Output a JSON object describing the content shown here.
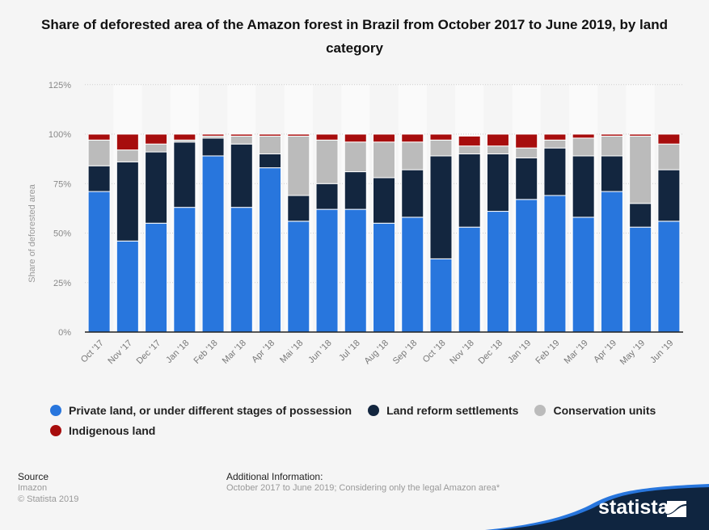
{
  "chart_data": {
    "type": "bar",
    "stacked": true,
    "title": "Share of deforested area of the Amazon forest in Brazil from October 2017 to June 2019, by land category",
    "xlabel": "",
    "ylabel": "Share of deforested area",
    "ylim": [
      0,
      125
    ],
    "yticks": [
      "0%",
      "25%",
      "50%",
      "75%",
      "100%",
      "125%"
    ],
    "ytick_values": [
      0,
      25,
      50,
      75,
      100,
      125
    ],
    "grid": true,
    "legend_position": "bottom",
    "categories": [
      "Oct '17",
      "Nov '17",
      "Dec '17",
      "Jan '18",
      "Feb '18",
      "Mar '18",
      "Apr '18",
      "Mai '18",
      "Jun '18",
      "Jul '18",
      "Aug '18",
      "Sep '18",
      "Oct '18",
      "Nov '18",
      "Dec '18",
      "Jan '19",
      "Feb '19",
      "Mar '19",
      "Apr '19",
      "May '19",
      "Jun '19"
    ],
    "series": [
      {
        "name": "Private land, or under different stages of possession",
        "color": "#2876dd",
        "values": [
          71,
          46,
          55,
          63,
          89,
          63,
          83,
          56,
          62,
          62,
          55,
          58,
          37,
          53,
          61,
          67,
          69,
          58,
          71,
          53,
          56
        ]
      },
      {
        "name": "Land reform settlements",
        "color": "#13263f",
        "values": [
          13,
          40,
          36,
          33,
          9,
          32,
          7,
          13,
          13,
          19,
          23,
          24,
          52,
          37,
          29,
          21,
          24,
          31,
          18,
          12,
          26
        ]
      },
      {
        "name": "Conservation units",
        "color": "#bbbbbb",
        "values": [
          13,
          6,
          4,
          1,
          1,
          4,
          9,
          30,
          22,
          15,
          18,
          14,
          8,
          4,
          4,
          5,
          4,
          9,
          10,
          34,
          13
        ]
      },
      {
        "name": "Indigenous land",
        "color": "#a70d0d",
        "values": [
          3,
          8,
          5,
          3,
          1,
          1,
          1,
          1,
          3,
          4,
          4,
          4,
          3,
          5,
          6,
          7,
          3,
          2,
          1,
          1,
          5
        ]
      }
    ]
  },
  "footer": {
    "source_heading": "Source",
    "source_name": "Imazon",
    "copyright": "© Statista 2019",
    "info_heading": "Additional Information:",
    "info_text": "October 2017 to June 2019; Considering only the legal Amazon area*"
  },
  "brand": {
    "name": "statista",
    "bg_color": "#0f2540",
    "accent_color": "#2876dd"
  }
}
